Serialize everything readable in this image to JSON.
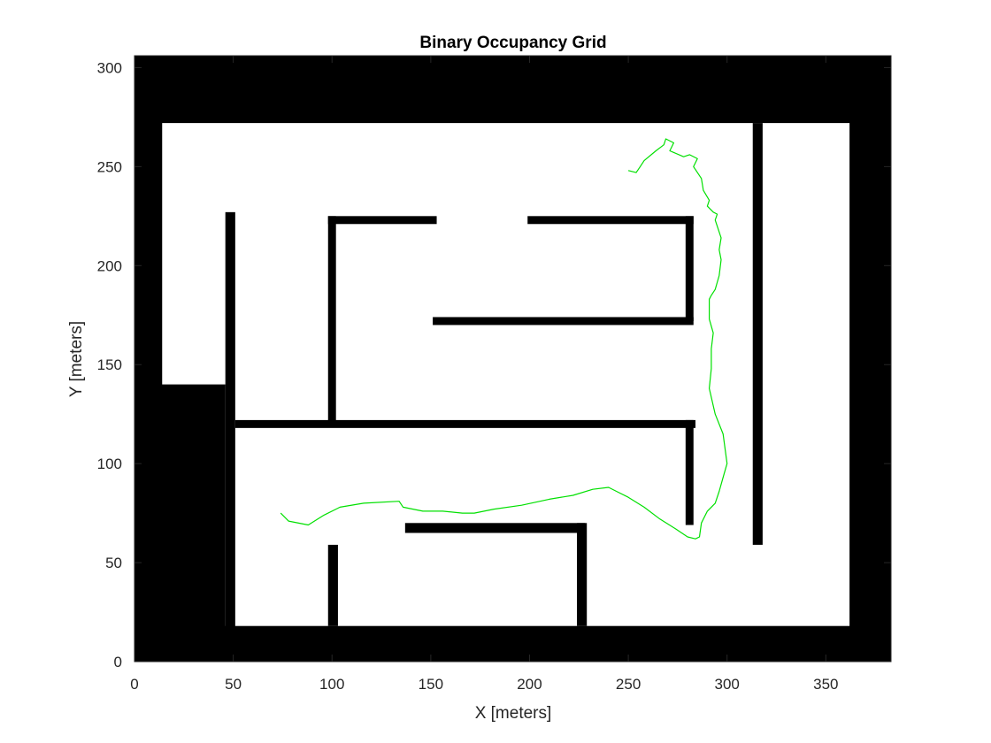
{
  "chart_data": {
    "type": "heatmap",
    "title": "Binary Occupancy Grid",
    "xlabel": "X [meters]",
    "ylabel": "Y [meters]",
    "xlim": [
      0,
      383
    ],
    "ylim": [
      0,
      306
    ],
    "xticks": [
      0,
      50,
      100,
      150,
      200,
      250,
      300,
      350
    ],
    "yticks": [
      0,
      50,
      100,
      150,
      200,
      250,
      300
    ],
    "grid": false,
    "legend": "none",
    "colors": {
      "occupied": "#000000",
      "free": "#ffffff",
      "path": "#00e000",
      "axes": "#262626"
    },
    "occupied_rects": [
      {
        "x0": 0,
        "x1": 383,
        "y0": 0,
        "y1": 18
      },
      {
        "x0": 0,
        "x1": 383,
        "y0": 272,
        "y1": 306
      },
      {
        "x0": 0,
        "x1": 14,
        "y0": 0,
        "y1": 306
      },
      {
        "x0": 362,
        "x1": 383,
        "y0": 0,
        "y1": 306
      },
      {
        "x0": 0,
        "x1": 46,
        "y0": 0,
        "y1": 140
      },
      {
        "x0": 46,
        "x1": 51,
        "y0": 0,
        "y1": 227
      },
      {
        "x0": 51,
        "x1": 284,
        "y0": 118,
        "y1": 122
      },
      {
        "x0": 98,
        "x1": 102,
        "y0": 119,
        "y1": 225
      },
      {
        "x0": 98,
        "x1": 153,
        "y0": 221,
        "y1": 225
      },
      {
        "x0": 199,
        "x1": 283,
        "y0": 221,
        "y1": 225
      },
      {
        "x0": 279,
        "x1": 283,
        "y0": 172,
        "y1": 225
      },
      {
        "x0": 151,
        "x1": 283,
        "y0": 170,
        "y1": 174
      },
      {
        "x0": 279,
        "x1": 283,
        "y0": 69,
        "y1": 122
      },
      {
        "x0": 313,
        "x1": 318,
        "y0": 59,
        "y1": 272
      },
      {
        "x0": 98,
        "x1": 103,
        "y0": 18,
        "y1": 59
      },
      {
        "x0": 137,
        "x1": 228,
        "y0": 65,
        "y1": 70
      },
      {
        "x0": 224,
        "x1": 229,
        "y0": 18,
        "y1": 70
      }
    ],
    "path": {
      "x": [
        74,
        78,
        88,
        96,
        104,
        116,
        134,
        136,
        146,
        156,
        166,
        172,
        182,
        196,
        210,
        222,
        232,
        240,
        244,
        250,
        258,
        266,
        274,
        280,
        284,
        286,
        287,
        290,
        294,
        296,
        298,
        300,
        298,
        294,
        291,
        292,
        292,
        293,
        291,
        291,
        292,
        294,
        296,
        297,
        296,
        297,
        294,
        295,
        293,
        290,
        291,
        288,
        287,
        283,
        285,
        281,
        278,
        271,
        273,
        269,
        268,
        264,
        258,
        256,
        254,
        250
      ],
      "y": [
        75,
        71,
        69,
        74,
        78,
        80,
        81,
        78,
        76,
        76,
        75,
        75,
        77,
        79,
        82,
        84,
        87,
        88,
        86,
        83,
        78,
        72,
        67,
        63,
        62,
        63,
        70,
        76,
        80,
        86,
        93,
        100,
        115,
        125,
        138,
        148,
        158,
        166,
        173,
        183,
        185,
        188,
        195,
        203,
        208,
        214,
        223,
        226,
        227,
        230,
        233,
        238,
        244,
        250,
        254,
        256,
        255,
        258,
        262,
        264,
        261,
        258,
        253,
        250,
        247,
        248
      ]
    }
  }
}
